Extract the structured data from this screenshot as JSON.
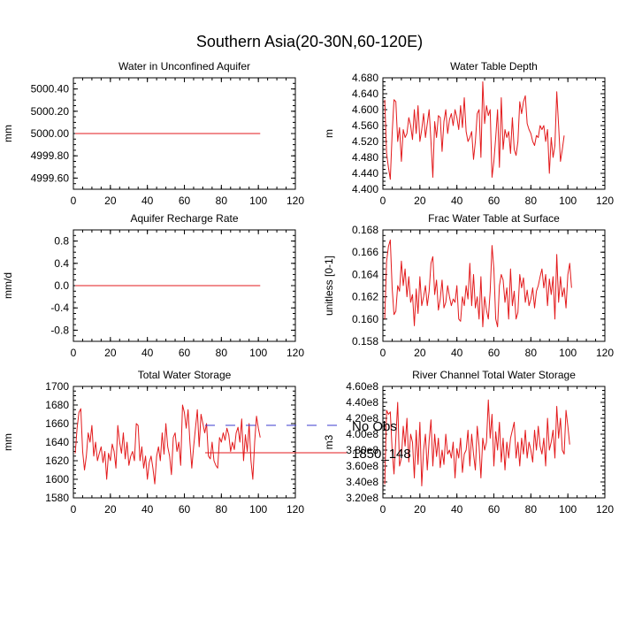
{
  "figure": {
    "title": "Southern Asia(20-30N,60-120E)",
    "legend": [
      {
        "label": "No Obs",
        "color": "#3b3bcf",
        "dash": true
      },
      {
        "label": "1850_148",
        "color": "#e31a1c",
        "dash": false
      }
    ]
  },
  "chart_data": [
    {
      "type": "line",
      "title": "Water in Unconfined Aquifer",
      "ylabel": "mm",
      "xlim": [
        0,
        120
      ],
      "ylim": [
        4999.5,
        5000.5
      ],
      "xticks": [
        0,
        20,
        40,
        60,
        80,
        100,
        120
      ],
      "yticks": [
        4999.6,
        4999.8,
        5000.0,
        5000.2,
        5000.4
      ],
      "ytick_labels": [
        "4999.60",
        "4999.80",
        "5000.00",
        "5000.20",
        "5000.40"
      ],
      "series": [
        {
          "name": "1850_148",
          "color": "#e31a1c",
          "x_start": 1,
          "values": [
            5000,
            5000,
            5000,
            5000,
            5000,
            5000,
            5000,
            5000,
            5000,
            5000,
            5000,
            5000,
            5000,
            5000,
            5000,
            5000,
            5000,
            5000,
            5000,
            5000,
            5000,
            5000,
            5000,
            5000,
            5000,
            5000,
            5000,
            5000,
            5000,
            5000,
            5000,
            5000,
            5000,
            5000,
            5000,
            5000,
            5000,
            5000,
            5000,
            5000,
            5000,
            5000,
            5000,
            5000,
            5000,
            5000,
            5000,
            5000,
            5000,
            5000,
            5000,
            5000,
            5000,
            5000,
            5000,
            5000,
            5000,
            5000,
            5000,
            5000,
            5000,
            5000,
            5000,
            5000,
            5000,
            5000,
            5000,
            5000,
            5000,
            5000,
            5000,
            5000,
            5000,
            5000,
            5000,
            5000,
            5000,
            5000,
            5000,
            5000,
            5000,
            5000,
            5000,
            5000,
            5000,
            5000,
            5000,
            5000,
            5000,
            5000,
            5000,
            5000,
            5000,
            5000,
            5000,
            5000,
            5000,
            5000,
            5000,
            5000,
            5000
          ]
        }
      ]
    },
    {
      "type": "line",
      "title": "Water Table Depth",
      "ylabel": "m",
      "xlim": [
        0,
        120
      ],
      "ylim": [
        4.4,
        4.68
      ],
      "xticks": [
        0,
        20,
        40,
        60,
        80,
        100,
        120
      ],
      "yticks": [
        4.4,
        4.44,
        4.48,
        4.52,
        4.56,
        4.6,
        4.64,
        4.68
      ],
      "ytick_labels": [
        "4.400",
        "4.440",
        "4.480",
        "4.520",
        "4.560",
        "4.600",
        "4.640",
        "4.680"
      ],
      "series": [
        {
          "name": "1850_148",
          "color": "#e31a1c",
          "x_start": 1,
          "values": [
            4.625,
            4.49,
            4.455,
            4.425,
            4.54,
            4.625,
            4.62,
            4.52,
            4.555,
            4.47,
            4.55,
            4.53,
            4.54,
            4.58,
            4.56,
            4.525,
            4.6,
            4.54,
            4.61,
            4.52,
            4.55,
            4.59,
            4.53,
            4.565,
            4.6,
            4.52,
            4.43,
            4.57,
            4.53,
            4.585,
            4.58,
            4.495,
            4.57,
            4.6,
            4.54,
            4.575,
            4.59,
            4.56,
            4.6,
            4.58,
            4.55,
            4.61,
            4.555,
            4.63,
            4.545,
            4.52,
            4.53,
            4.545,
            4.475,
            4.52,
            4.59,
            4.6,
            4.48,
            4.67,
            4.565,
            4.61,
            4.585,
            4.6,
            4.43,
            4.47,
            4.53,
            4.6,
            4.455,
            4.63,
            4.5,
            4.55,
            4.53,
            4.545,
            4.49,
            4.58,
            4.5,
            4.485,
            4.52,
            4.62,
            4.59,
            4.62,
            4.635,
            4.565,
            4.55,
            4.54,
            4.52,
            4.51,
            4.535,
            4.53,
            4.56,
            4.55,
            4.56,
            4.52,
            4.55,
            4.44,
            4.53,
            4.48,
            4.51,
            4.645,
            4.56,
            4.47,
            4.5,
            4.535
          ]
        }
      ]
    },
    {
      "type": "line",
      "title": "Aquifer Recharge Rate",
      "ylabel": "mm/d",
      "xlim": [
        0,
        120
      ],
      "ylim": [
        -1.0,
        1.0
      ],
      "xticks": [
        0,
        20,
        40,
        60,
        80,
        100,
        120
      ],
      "yticks": [
        -0.8,
        -0.4,
        0.0,
        0.4,
        0.8
      ],
      "ytick_labels": [
        "-0.8",
        "-0.4",
        "0.0",
        "0.4",
        "0.8"
      ],
      "series": [
        {
          "name": "1850_148",
          "color": "#e31a1c",
          "x_start": 1,
          "values": [
            0,
            0,
            0,
            0,
            0,
            0,
            0,
            0,
            0,
            0,
            0,
            0,
            0,
            0,
            0,
            0,
            0,
            0,
            0,
            0,
            0,
            0,
            0,
            0,
            0,
            0,
            0,
            0,
            0,
            0,
            0,
            0,
            0,
            0,
            0,
            0,
            0,
            0,
            0,
            0,
            0,
            0,
            0,
            0,
            0,
            0,
            0,
            0,
            0,
            0,
            0,
            0,
            0,
            0,
            0,
            0,
            0,
            0,
            0,
            0,
            0,
            0,
            0,
            0,
            0,
            0,
            0,
            0,
            0,
            0,
            0,
            0,
            0,
            0,
            0,
            0,
            0,
            0,
            0,
            0,
            0,
            0,
            0,
            0,
            0,
            0,
            0,
            0,
            0,
            0,
            0,
            0,
            0,
            0,
            0,
            0,
            0,
            0,
            0,
            0,
            0
          ]
        }
      ]
    },
    {
      "type": "line",
      "title": "Frac Water Table at Surface",
      "ylabel": "unitless [0-1]",
      "xlim": [
        0,
        120
      ],
      "ylim": [
        0.158,
        0.168
      ],
      "xticks": [
        0,
        20,
        40,
        60,
        80,
        100,
        120
      ],
      "yticks": [
        0.158,
        0.16,
        0.162,
        0.164,
        0.166,
        0.168
      ],
      "ytick_labels": [
        "0.158",
        "0.160",
        "0.162",
        "0.164",
        "0.166",
        "0.168"
      ],
      "series": [
        {
          "name": "1850_148",
          "color": "#e31a1c",
          "x_start": 1,
          "values": [
            0.16,
            0.1652,
            0.1665,
            0.1671,
            0.1628,
            0.1604,
            0.1607,
            0.163,
            0.1625,
            0.1652,
            0.163,
            0.1645,
            0.162,
            0.1638,
            0.1615,
            0.1622,
            0.1594,
            0.1627,
            0.1605,
            0.1638,
            0.1612,
            0.162,
            0.163,
            0.1612,
            0.1625,
            0.165,
            0.1656,
            0.1622,
            0.1635,
            0.1608,
            0.1618,
            0.1635,
            0.161,
            0.1615,
            0.163,
            0.162,
            0.1612,
            0.1618,
            0.1615,
            0.163,
            0.16,
            0.1598,
            0.162,
            0.1612,
            0.163,
            0.1618,
            0.165,
            0.1612,
            0.164,
            0.161,
            0.162,
            0.16,
            0.1638,
            0.1593,
            0.162,
            0.1608,
            0.16,
            0.1625,
            0.1666,
            0.1645,
            0.16,
            0.1593,
            0.163,
            0.164,
            0.1635,
            0.1615,
            0.1628,
            0.16,
            0.1645,
            0.1612,
            0.1625,
            0.16,
            0.1606,
            0.164,
            0.1628,
            0.1637,
            0.1615,
            0.1626,
            0.1612,
            0.1618,
            0.1628,
            0.161,
            0.1625,
            0.163,
            0.1638,
            0.1645,
            0.1628,
            0.164,
            0.1612,
            0.1636,
            0.1622,
            0.1638,
            0.16,
            0.1658,
            0.1615,
            0.1638,
            0.162,
            0.1628,
            0.161,
            0.164,
            0.165,
            0.1628
          ]
        }
      ]
    },
    {
      "type": "line",
      "title": "Total Water Storage",
      "ylabel": "mm",
      "xlim": [
        0,
        120
      ],
      "ylim": [
        1580,
        1700
      ],
      "xticks": [
        0,
        20,
        40,
        60,
        80,
        100,
        120
      ],
      "yticks": [
        1580,
        1600,
        1620,
        1640,
        1660,
        1680,
        1700
      ],
      "ytick_labels": [
        "1580",
        "1600",
        "1620",
        "1640",
        "1660",
        "1680",
        "1700"
      ],
      "series": [
        {
          "name": "1850_148",
          "color": "#e31a1c",
          "x_start": 1,
          "values": [
            1628,
            1655,
            1672,
            1676,
            1630,
            1610,
            1625,
            1650,
            1640,
            1658,
            1625,
            1640,
            1620,
            1628,
            1635,
            1618,
            1630,
            1600,
            1628,
            1620,
            1638,
            1630,
            1612,
            1658,
            1640,
            1628,
            1650,
            1622,
            1640,
            1615,
            1625,
            1630,
            1620,
            1660,
            1658,
            1620,
            1635,
            1612,
            1625,
            1600,
            1618,
            1625,
            1612,
            1595,
            1625,
            1635,
            1620,
            1650,
            1627,
            1660,
            1635,
            1625,
            1605,
            1645,
            1650,
            1630,
            1640,
            1615,
            1680,
            1672,
            1655,
            1675,
            1640,
            1612,
            1635,
            1655,
            1675,
            1635,
            1670,
            1660,
            1650,
            1660,
            1625,
            1622,
            1640,
            1620,
            1615,
            1612,
            1645,
            1640,
            1650,
            1642,
            1655,
            1648,
            1630,
            1640,
            1632,
            1650,
            1656,
            1640,
            1665,
            1620,
            1648,
            1630,
            1660,
            1620,
            1600,
            1640,
            1668,
            1655,
            1645
          ]
        }
      ]
    },
    {
      "type": "line",
      "title": "River Channel Total Water Storage",
      "ylabel": "m3",
      "xlim": [
        0,
        120
      ],
      "ylim": [
        320000000,
        460000000
      ],
      "xticks": [
        0,
        20,
        40,
        60,
        80,
        100,
        120
      ],
      "yticks": [
        320000000,
        340000000,
        360000000,
        380000000,
        400000000,
        420000000,
        440000000,
        460000000
      ],
      "ytick_labels": [
        "3.20e8",
        "3.40e8",
        "3.60e8",
        "3.80e8",
        "4.00e8",
        "4.20e8",
        "4.40e8",
        "4.60e8"
      ],
      "series": [
        {
          "name": "1850_148",
          "color": "#e31a1c",
          "x_start": 1,
          "values": [
            337000000,
            430000000,
            425000000,
            428000000,
            380000000,
            350000000,
            395000000,
            440000000,
            360000000,
            370000000,
            410000000,
            385000000,
            420000000,
            365000000,
            400000000,
            390000000,
            345000000,
            405000000,
            362000000,
            415000000,
            335000000,
            380000000,
            400000000,
            355000000,
            392000000,
            418000000,
            360000000,
            400000000,
            372000000,
            395000000,
            358000000,
            380000000,
            362000000,
            400000000,
            375000000,
            380000000,
            370000000,
            390000000,
            345000000,
            382000000,
            370000000,
            395000000,
            352000000,
            375000000,
            380000000,
            405000000,
            360000000,
            400000000,
            375000000,
            355000000,
            410000000,
            385000000,
            345000000,
            395000000,
            380000000,
            390000000,
            443000000,
            395000000,
            425000000,
            360000000,
            403000000,
            380000000,
            415000000,
            365000000,
            395000000,
            355000000,
            390000000,
            370000000,
            395000000,
            405000000,
            415000000,
            370000000,
            390000000,
            360000000,
            395000000,
            375000000,
            405000000,
            370000000,
            390000000,
            380000000,
            365000000,
            405000000,
            380000000,
            410000000,
            385000000,
            375000000,
            395000000,
            360000000,
            420000000,
            380000000,
            390000000,
            405000000,
            370000000,
            435000000,
            395000000,
            420000000,
            380000000,
            375000000,
            430000000,
            410000000,
            387000000
          ]
        }
      ]
    }
  ]
}
